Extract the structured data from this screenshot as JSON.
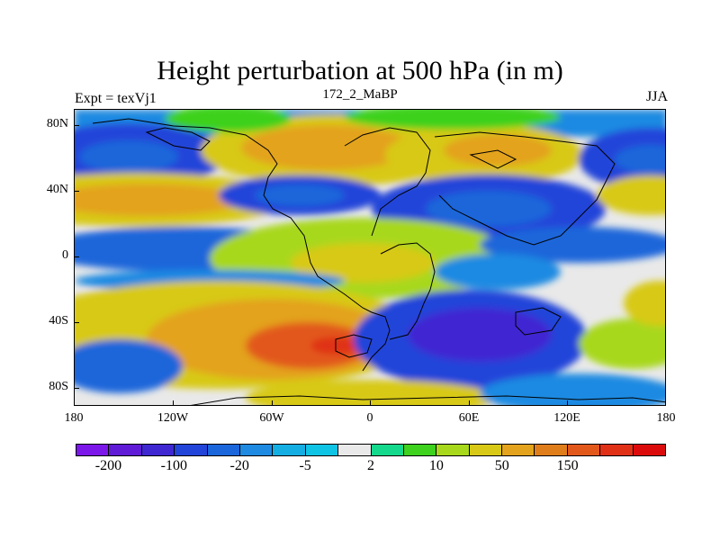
{
  "title": "Height perturbation at 500 hPa (in m)",
  "subtitle_left": "Expt = texVj1",
  "subtitle_center": "172_2_MaBP",
  "subtitle_right": "JJA",
  "lat_labels": [
    "80N",
    "40N",
    "0",
    "40S",
    "80S"
  ],
  "lon_labels": [
    "180",
    "120W",
    "60W",
    "0",
    "60E",
    "120E",
    "180"
  ],
  "colorbar": {
    "colors": [
      "#7b17e8",
      "#5f1bd6",
      "#3f28d2",
      "#2244d9",
      "#1a66da",
      "#1e8ae2",
      "#15aee3",
      "#0fc3e4",
      "#e9e9e9",
      "#14d98c",
      "#3ed11e",
      "#a8d81b",
      "#d8c916",
      "#e3a31c",
      "#e07d1b",
      "#e2581b",
      "#e03117",
      "#dc0b0b"
    ],
    "labels": [
      "-200",
      "-100",
      "-20",
      "-5",
      "2",
      "10",
      "50",
      "150"
    ]
  }
}
